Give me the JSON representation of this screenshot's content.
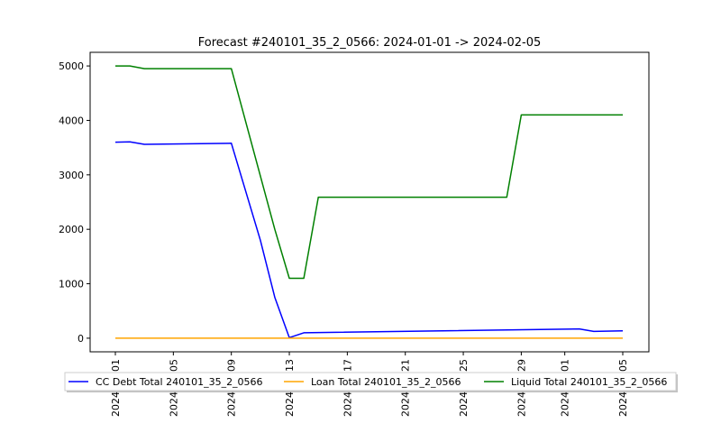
{
  "chart_data": {
    "type": "line",
    "title": "Forecast #240101_35_2_0566: 2024-01-01 -> 2024-02-05",
    "xlabel": "",
    "ylabel": "",
    "x_ticks": [
      "2024-01-01",
      "2024-01-05",
      "2024-01-09",
      "2024-01-13",
      "2024-01-17",
      "2024-01-21",
      "2024-01-25",
      "2024-01-29",
      "2024-02-01",
      "2024-02-05"
    ],
    "y_ticks": [
      0,
      1000,
      2000,
      3000,
      4000,
      5000
    ],
    "ylim": [
      -250,
      5250
    ],
    "legend_position": "below plot",
    "grid": false,
    "series": [
      {
        "name": "CC Debt Total 240101_35_2_0566",
        "color": "#0000ff",
        "points": [
          {
            "x": "2024-01-01",
            "y": 3600
          },
          {
            "x": "2024-01-02",
            "y": 3605
          },
          {
            "x": "2024-01-03",
            "y": 3560
          },
          {
            "x": "2024-01-09",
            "y": 3580
          },
          {
            "x": "2024-01-11",
            "y": 1800
          },
          {
            "x": "2024-01-12",
            "y": 750
          },
          {
            "x": "2024-01-13",
            "y": 10
          },
          {
            "x": "2024-01-14",
            "y": 100
          },
          {
            "x": "2024-02-02",
            "y": 170
          },
          {
            "x": "2024-02-03",
            "y": 125
          },
          {
            "x": "2024-02-05",
            "y": 135
          }
        ]
      },
      {
        "name": "Loan Total 240101_35_2_0566",
        "color": "#ffa500",
        "points": [
          {
            "x": "2024-01-01",
            "y": 0
          },
          {
            "x": "2024-02-05",
            "y": 0
          }
        ]
      },
      {
        "name": "Liquid Total 240101_35_2_0566",
        "color": "#008000",
        "points": [
          {
            "x": "2024-01-01",
            "y": 5000
          },
          {
            "x": "2024-01-02",
            "y": 5000
          },
          {
            "x": "2024-01-03",
            "y": 4950
          },
          {
            "x": "2024-01-09",
            "y": 4950
          },
          {
            "x": "2024-01-12",
            "y": 2000
          },
          {
            "x": "2024-01-13",
            "y": 1100
          },
          {
            "x": "2024-01-14",
            "y": 1100
          },
          {
            "x": "2024-01-15",
            "y": 2590
          },
          {
            "x": "2024-01-28",
            "y": 2590
          },
          {
            "x": "2024-01-29",
            "y": 4100
          },
          {
            "x": "2024-02-05",
            "y": 4100
          }
        ]
      }
    ]
  }
}
